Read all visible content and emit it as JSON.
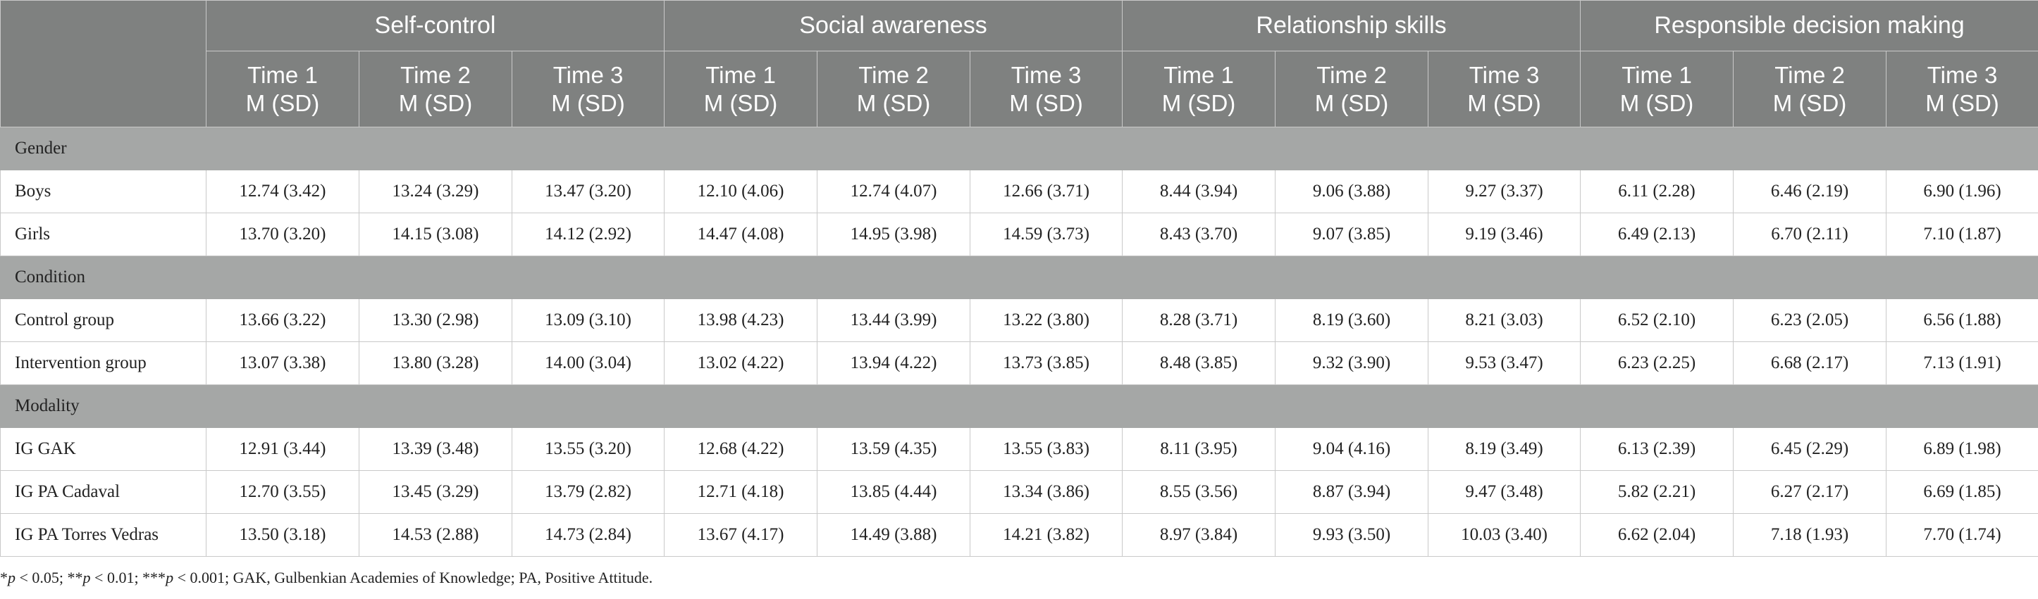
{
  "header": {
    "groups": [
      "Self-control",
      "Social awareness",
      "Relationship skills",
      "Responsible decision making"
    ],
    "times": [
      {
        "time": "Time 1",
        "stat": "M (SD)"
      },
      {
        "time": "Time 2",
        "stat": "M (SD)"
      },
      {
        "time": "Time 3",
        "stat": "M (SD)"
      }
    ]
  },
  "sections": [
    {
      "title": "Gender",
      "rows": [
        {
          "label": "Boys",
          "values": [
            "12.74 (3.42)",
            "13.24 (3.29)",
            "13.47 (3.20)",
            "12.10 (4.06)",
            "12.74 (4.07)",
            "12.66 (3.71)",
            "8.44 (3.94)",
            "9.06 (3.88)",
            "9.27 (3.37)",
            "6.11 (2.28)",
            "6.46 (2.19)",
            "6.90 (1.96)"
          ]
        },
        {
          "label": "Girls",
          "values": [
            "13.70 (3.20)",
            "14.15 (3.08)",
            "14.12 (2.92)",
            "14.47 (4.08)",
            "14.95 (3.98)",
            "14.59 (3.73)",
            "8.43 (3.70)",
            "9.07 (3.85)",
            "9.19 (3.46)",
            "6.49 (2.13)",
            "6.70 (2.11)",
            "7.10 (1.87)"
          ]
        }
      ]
    },
    {
      "title": "Condition",
      "rows": [
        {
          "label": "Control group",
          "values": [
            "13.66 (3.22)",
            "13.30 (2.98)",
            "13.09 (3.10)",
            "13.98 (4.23)",
            "13.44 (3.99)",
            "13.22 (3.80)",
            "8.28 (3.71)",
            "8.19 (3.60)",
            "8.21 (3.03)",
            "6.52 (2.10)",
            "6.23 (2.05)",
            "6.56 (1.88)"
          ]
        },
        {
          "label": "Intervention group",
          "values": [
            "13.07 (3.38)",
            "13.80 (3.28)",
            "14.00 (3.04)",
            "13.02 (4.22)",
            "13.94 (4.22)",
            "13.73 (3.85)",
            "8.48 (3.85)",
            "9.32 (3.90)",
            "9.53 (3.47)",
            "6.23 (2.25)",
            "6.68 (2.17)",
            "7.13 (1.91)"
          ]
        }
      ]
    },
    {
      "title": "Modality",
      "rows": [
        {
          "label": "IG GAK",
          "values": [
            "12.91 (3.44)",
            "13.39 (3.48)",
            "13.55 (3.20)",
            "12.68 (4.22)",
            "13.59 (4.35)",
            "13.55 (3.83)",
            "8.11 (3.95)",
            "9.04 (4.16)",
            "8.19 (3.49)",
            "6.13 (2.39)",
            "6.45 (2.29)",
            "6.89 (1.98)"
          ]
        },
        {
          "label": "IG PA Cadaval",
          "values": [
            "12.70 (3.55)",
            "13.45 (3.29)",
            "13.79 (2.82)",
            "12.71 (4.18)",
            "13.85 (4.44)",
            "13.34 (3.86)",
            "8.55 (3.56)",
            "8.87 (3.94)",
            "9.47 (3.48)",
            "5.82 (2.21)",
            "6.27 (2.17)",
            "6.69 (1.85)"
          ]
        },
        {
          "label": "IG PA Torres Vedras",
          "values": [
            "13.50 (3.18)",
            "14.53 (2.88)",
            "14.73 (2.84)",
            "13.67 (4.17)",
            "14.49 (3.88)",
            "14.21 (3.82)",
            "8.97 (3.84)",
            "9.93 (3.50)",
            "10.03 (3.40)",
            "6.62 (2.04)",
            "7.18 (1.93)",
            "7.70 (1.74)"
          ]
        }
      ]
    }
  ],
  "footnote": {
    "p1": "p",
    "t1": " < 0.05; **",
    "p2": "p",
    "t2": " < 0.01; ***",
    "p3": "p",
    "t3": " < 0.001; GAK, Gulbenkian Academies of Knowledge; PA, Positive Attitude.",
    "lead": "*"
  }
}
